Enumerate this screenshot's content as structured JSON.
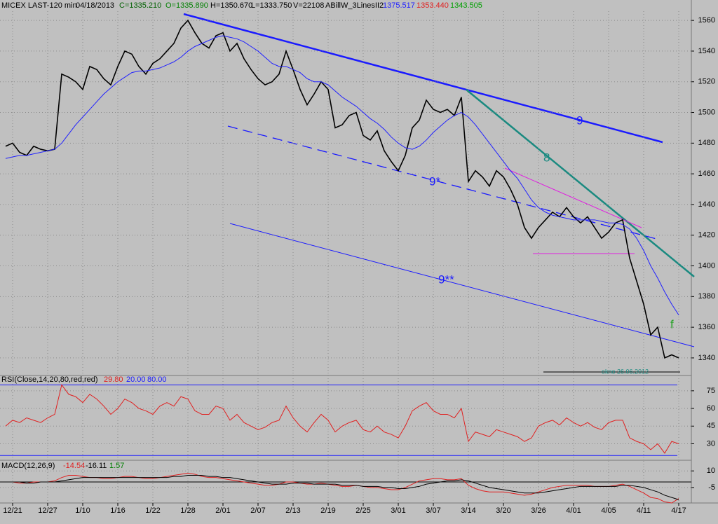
{
  "header": {
    "symbol": "MICEX LAST-120 min",
    "date": "04/18/2013",
    "close": "C=1335.210",
    "open": "O=1335.890",
    "high": "H=1350.670",
    "low": "L=1333.750",
    "volume": "V=22108",
    "indicator": "ABillW_3LinesII2",
    "indicator_values": [
      "1375.517",
      "1353.440",
      "1343.505"
    ]
  },
  "chart_data": [
    {
      "type": "line",
      "categories": [
        null,
        "12/21",
        null,
        null,
        null,
        null,
        "12/27",
        null,
        null,
        null,
        null,
        "1/10",
        null,
        null,
        null,
        null,
        "1/16",
        null,
        null,
        null,
        null,
        "1/22",
        null,
        null,
        null,
        null,
        "1/28",
        null,
        null,
        null,
        null,
        "2/01",
        null,
        null,
        null,
        null,
        "2/07",
        null,
        null,
        null,
        null,
        "2/13",
        null,
        null,
        null,
        null,
        "2/19",
        null,
        null,
        null,
        null,
        "2/25",
        null,
        null,
        null,
        null,
        "3/01",
        null,
        null,
        null,
        null,
        "3/07",
        null,
        null,
        null,
        null,
        "3/14",
        null,
        null,
        null,
        null,
        "3/20",
        null,
        null,
        null,
        null,
        "3/26",
        null,
        null,
        null,
        null,
        "4/01",
        null,
        null,
        null,
        null,
        "4/05",
        null,
        null,
        null,
        null,
        "4/11",
        null,
        null,
        null,
        null,
        "4/17"
      ],
      "series": [
        {
          "color": "#000000",
          "values": [
            1478,
            1480,
            1474,
            1472,
            1478,
            1476,
            1475,
            1476,
            1525,
            1523,
            1520,
            1515,
            1530,
            1528,
            1522,
            1518,
            1530,
            1540,
            1538,
            1530,
            1525,
            1532,
            1535,
            1540,
            1545,
            1555,
            1560,
            1552,
            1545,
            1542,
            1550,
            1552,
            1540,
            1545,
            1535,
            1528,
            1522,
            1518,
            1520,
            1525,
            1540,
            1528,
            1515,
            1505,
            1512,
            1520,
            1515,
            1490,
            1492,
            1498,
            1500,
            1485,
            1482,
            1488,
            1475,
            1468,
            1462,
            1472,
            1490,
            1495,
            1508,
            1502,
            1500,
            1502,
            1498,
            1510,
            1455,
            1462,
            1458,
            1452,
            1462,
            1458,
            1450,
            1440,
            1425,
            1418,
            1425,
            1430,
            1435,
            1432,
            1438,
            1432,
            1428,
            1432,
            1425,
            1418,
            1422,
            1428,
            1430,
            1405,
            1390,
            1375,
            1355,
            1360,
            1340,
            1342,
            1340
          ]
        },
        {
          "color": "#2020ff",
          "values": [
            1470,
            1471,
            1472,
            1472,
            1473,
            1474,
            1475,
            1476,
            1480,
            1486,
            1492,
            1497,
            1502,
            1507,
            1512,
            1516,
            1520,
            1523,
            1526,
            1527,
            1527,
            1528,
            1529,
            1531,
            1533,
            1536,
            1540,
            1543,
            1545,
            1547,
            1549,
            1550,
            1549,
            1548,
            1546,
            1543,
            1540,
            1536,
            1532,
            1530,
            1530,
            1528,
            1526,
            1522,
            1520,
            1520,
            1518,
            1514,
            1510,
            1507,
            1504,
            1500,
            1496,
            1493,
            1489,
            1484,
            1480,
            1477,
            1476,
            1478,
            1482,
            1487,
            1491,
            1495,
            1498,
            1500,
            1497,
            1492,
            1486,
            1480,
            1474,
            1468,
            1462,
            1457,
            1450,
            1443,
            1438,
            1435,
            1433,
            1432,
            1431,
            1430,
            1430,
            1430,
            1430,
            1429,
            1428,
            1428,
            1427,
            1424,
            1418,
            1410,
            1400,
            1392,
            1383,
            1375,
            1368
          ]
        }
      ],
      "ylim": [
        1329,
        1566
      ],
      "yticks": [
        1340,
        1360,
        1380,
        1400,
        1420,
        1440,
        1460,
        1480,
        1500,
        1520,
        1540,
        1560
      ],
      "grid": true,
      "annotations": [
        "9",
        "8",
        "9*",
        "9**",
        "f",
        "okno 26.06.2012"
      ]
    },
    {
      "type": "line",
      "title": "RSI(Close,14,20,80,red,red)",
      "readout": "29.80",
      "levels": [
        {
          "value": 20,
          "label": "20.00"
        },
        {
          "value": 80,
          "label": "80.00"
        }
      ],
      "series": [
        {
          "color": "#e02020",
          "values": [
            45,
            50,
            48,
            52,
            50,
            48,
            52,
            55,
            80,
            72,
            70,
            65,
            72,
            68,
            62,
            55,
            60,
            68,
            65,
            60,
            58,
            55,
            62,
            65,
            62,
            70,
            68,
            58,
            55,
            55,
            62,
            60,
            50,
            55,
            48,
            45,
            42,
            44,
            48,
            50,
            62,
            52,
            45,
            40,
            48,
            55,
            50,
            40,
            45,
            48,
            50,
            42,
            40,
            45,
            40,
            38,
            35,
            45,
            58,
            62,
            65,
            58,
            55,
            55,
            52,
            60,
            32,
            40,
            38,
            36,
            42,
            40,
            38,
            36,
            32,
            35,
            45,
            48,
            50,
            46,
            52,
            48,
            45,
            48,
            44,
            42,
            48,
            50,
            50,
            35,
            32,
            30,
            25,
            30,
            22,
            32,
            30
          ]
        }
      ],
      "ylim": [
        16,
        88
      ],
      "yticks": [
        30,
        45,
        60,
        75
      ],
      "grid": true
    },
    {
      "type": "line",
      "title": "MACD(12,26,9)",
      "readouts": [
        "-14.54",
        "-16.11",
        "1.57"
      ],
      "series": [
        {
          "color": "#e02020",
          "values": [
            0,
            0,
            -1,
            -1,
            0,
            0,
            0,
            1,
            4,
            6,
            6,
            5,
            4,
            4,
            3,
            3,
            4,
            5,
            5,
            4,
            3,
            3,
            4,
            5,
            6,
            7,
            8,
            7,
            5,
            4,
            4,
            3,
            2,
            1,
            0,
            -1,
            -2,
            -3,
            -3,
            -2,
            0,
            0,
            -1,
            -2,
            -2,
            -1,
            -2,
            -3,
            -4,
            -4,
            -3,
            -4,
            -5,
            -5,
            -6,
            -7,
            -7,
            -5,
            -2,
            1,
            2,
            3,
            3,
            2,
            2,
            3,
            -3,
            -6,
            -8,
            -9,
            -9,
            -9,
            -10,
            -11,
            -12,
            -11,
            -9,
            -7,
            -5,
            -4,
            -3,
            -3,
            -3,
            -3,
            -4,
            -4,
            -4,
            -3,
            -2,
            -4,
            -7,
            -10,
            -14,
            -15,
            -18,
            -19,
            -15
          ]
        },
        {
          "color": "#000000",
          "values": [
            0,
            0,
            0,
            -1,
            -1,
            0,
            0,
            0,
            1,
            2,
            3,
            4,
            4,
            4,
            4,
            4,
            4,
            4,
            4,
            4,
            4,
            4,
            4,
            4,
            5,
            5,
            6,
            6,
            6,
            5,
            5,
            4,
            4,
            3,
            2,
            1,
            0,
            -1,
            -2,
            -2,
            -2,
            -1,
            -1,
            -1,
            -2,
            -2,
            -2,
            -2,
            -3,
            -3,
            -3,
            -4,
            -4,
            -4,
            -5,
            -5,
            -6,
            -6,
            -5,
            -4,
            -2,
            -1,
            0,
            1,
            1,
            2,
            1,
            -1,
            -3,
            -5,
            -6,
            -7,
            -8,
            -9,
            -10,
            -10,
            -10,
            -9,
            -8,
            -7,
            -6,
            -5,
            -4,
            -4,
            -4,
            -4,
            -4,
            -4,
            -3,
            -3,
            -4,
            -5,
            -7,
            -9,
            -12,
            -14,
            -16
          ]
        }
      ],
      "ylim": [
        -19,
        19
      ],
      "yticks": [
        10,
        -5
      ],
      "grid": true
    }
  ]
}
